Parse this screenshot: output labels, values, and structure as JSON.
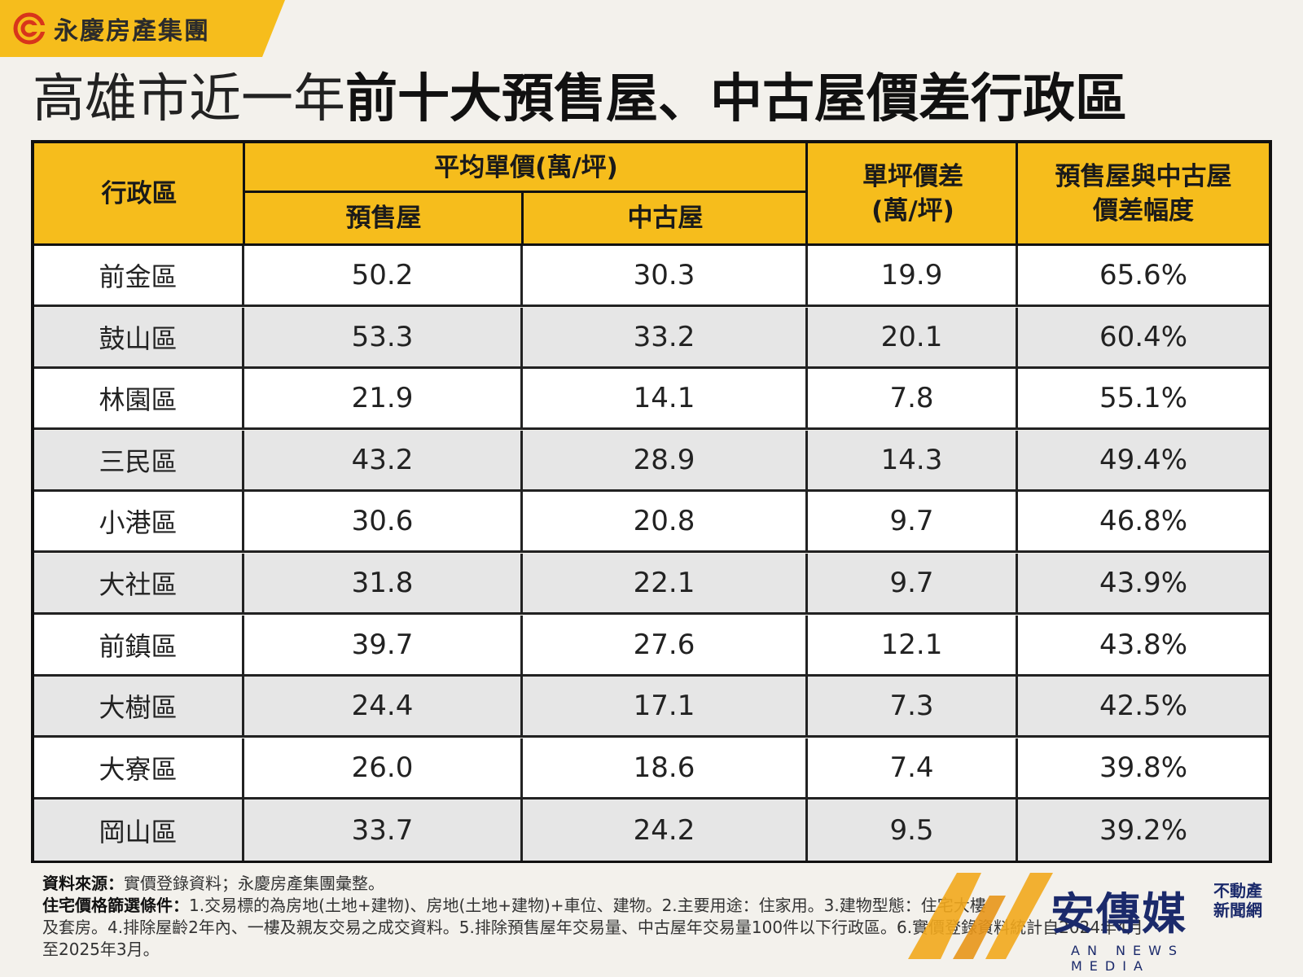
{
  "brand": {
    "name": "永慶房產集團"
  },
  "title": {
    "light": "高雄市近一年",
    "bold": "前十大預售屋、中古屋價差行政區"
  },
  "table": {
    "headers": {
      "district": "行政區",
      "avg_price_group": "平均單價(萬/坪)",
      "presale": "預售屋",
      "used": "中古屋",
      "diff_line1": "單坪價差",
      "diff_line2": "(萬/坪)",
      "pct_line1": "預售屋與中古屋",
      "pct_line2": "價差幅度"
    },
    "rows": [
      {
        "district": "前金區",
        "presale": "50.2",
        "used": "30.3",
        "diff": "19.9",
        "pct": "65.6%"
      },
      {
        "district": "鼓山區",
        "presale": "53.3",
        "used": "33.2",
        "diff": "20.1",
        "pct": "60.4%"
      },
      {
        "district": "林園區",
        "presale": "21.9",
        "used": "14.1",
        "diff": "7.8",
        "pct": "55.1%"
      },
      {
        "district": "三民區",
        "presale": "43.2",
        "used": "28.9",
        "diff": "14.3",
        "pct": "49.4%"
      },
      {
        "district": "小港區",
        "presale": "30.6",
        "used": "20.8",
        "diff": "9.7",
        "pct": "46.8%"
      },
      {
        "district": "大社區",
        "presale": "31.8",
        "used": "22.1",
        "diff": "9.7",
        "pct": "43.9%"
      },
      {
        "district": "前鎮區",
        "presale": "39.7",
        "used": "27.6",
        "diff": "12.1",
        "pct": "43.8%"
      },
      {
        "district": "大樹區",
        "presale": "24.4",
        "used": "17.1",
        "diff": "7.3",
        "pct": "42.5%"
      },
      {
        "district": "大寮區",
        "presale": "26.0",
        "used": "18.6",
        "diff": "7.4",
        "pct": "39.8%"
      },
      {
        "district": "岡山區",
        "presale": "33.7",
        "used": "24.2",
        "diff": "9.5",
        "pct": "39.2%"
      }
    ]
  },
  "notes": {
    "source_label": "資料來源：",
    "source_text": "實價登錄資料；永慶房產集團彙整。",
    "criteria_label": "住宅價格篩選條件：",
    "criteria_line1": "1.交易標的為房地(土地+建物)、房地(土地+建物)+車位、建物。2.主要用途：住家用。3.建物型態：住宅大樓",
    "criteria_line2": "及套房。4.排除屋齡2年內、一樓及親友交易之成交資料。5.排除預售屋年交易量、中古屋年交易量100件以下行政區。6.實價登錄資料統計自2024年4月",
    "criteria_line3": "至2025年3月。"
  },
  "watermark": {
    "name": "安傳媒",
    "sub1": "不動產",
    "sub2": "新聞網",
    "en": "AN NEWS MEDIA"
  },
  "colors": {
    "header_bg": "#f6bd1c",
    "row_alt": "#e6e6e6",
    "border": "#111111",
    "watermark": "#1b2a6b"
  }
}
